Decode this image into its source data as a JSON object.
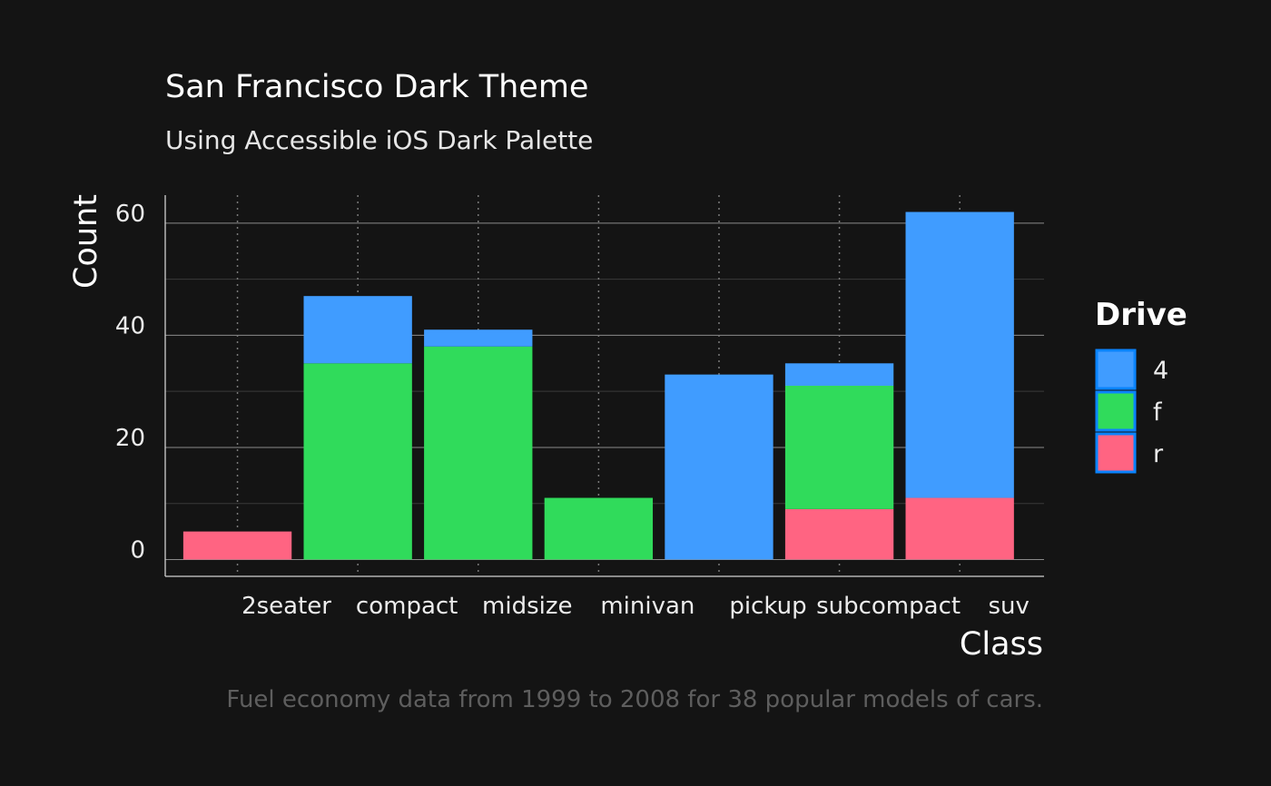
{
  "chart_data": {
    "type": "bar",
    "stacked": true,
    "title": "San Francisco Dark Theme",
    "subtitle": "Using Accessible iOS Dark Palette",
    "caption": "Fuel economy data from 1999 to 2008 for 38 popular models of cars.",
    "xlabel": "Class",
    "ylabel": "Count",
    "categories": [
      "2seater",
      "compact",
      "midsize",
      "minivan",
      "pickup",
      "subcompact",
      "suv"
    ],
    "series": [
      {
        "name": "r",
        "values": [
          5,
          0,
          0,
          0,
          0,
          9,
          11
        ]
      },
      {
        "name": "f",
        "values": [
          0,
          35,
          38,
          11,
          0,
          22,
          0
        ]
      },
      {
        "name": "4",
        "values": [
          0,
          12,
          3,
          0,
          33,
          4,
          51
        ]
      }
    ],
    "ylim": [
      -3,
      65
    ],
    "yticks": [
      0,
      20,
      40,
      60
    ],
    "grid": true,
    "legend": {
      "title": "Drive",
      "placement": "right",
      "items": [
        "4",
        "f",
        "r"
      ]
    },
    "colors": {
      "4": "#409CFF",
      "f": "#30DB5B",
      "r": "#FF6482",
      "legend_border": "#0A84FF",
      "background": "#141414",
      "grid_major": "#8a8a8a",
      "grid_minor": "#3a3a3a"
    }
  }
}
